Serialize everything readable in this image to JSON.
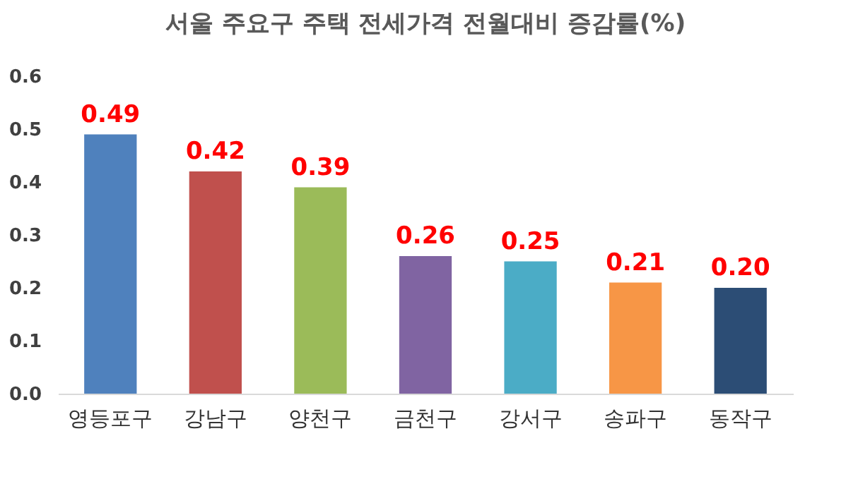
{
  "chart_data": {
    "type": "bar",
    "title": "서울 주요구 주택 전세가격 전월대비 증감률(%)",
    "categories": [
      "영등포구",
      "강남구",
      "양천구",
      "금천구",
      "강서구",
      "송파구",
      "동작구"
    ],
    "values": [
      0.49,
      0.42,
      0.39,
      0.26,
      0.25,
      0.21,
      0.2
    ],
    "colors": [
      "#4f81bd",
      "#c0504d",
      "#9bbb59",
      "#8064a2",
      "#4bacc6",
      "#f79646",
      "#2c4d75"
    ],
    "value_labels": [
      "0.49",
      "0.42",
      "0.39",
      "0.26",
      "0.25",
      "0.21",
      "0.20"
    ],
    "ylim": [
      0,
      0.6
    ],
    "yticks": [
      {
        "value": 0,
        "label": "0.0"
      },
      0.1,
      0.2,
      0.3,
      0.4,
      0.5,
      0.6
    ],
    "grid": false
  }
}
